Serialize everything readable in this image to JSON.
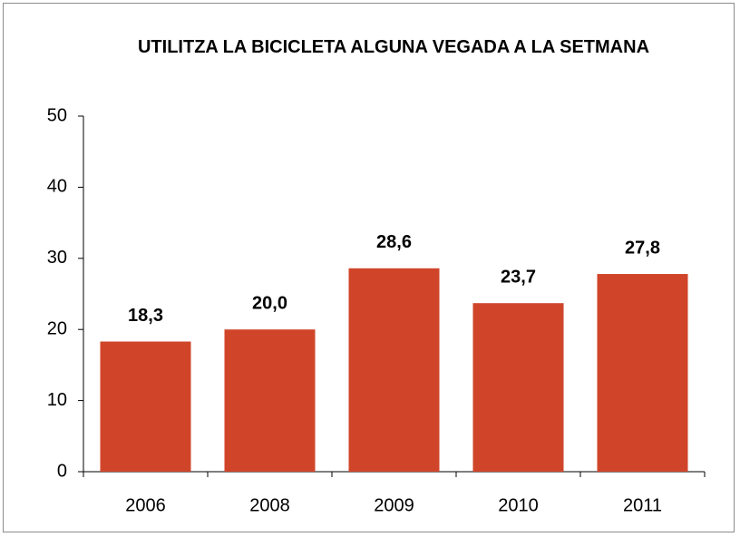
{
  "chart_data": {
    "type": "bar",
    "title": "UTILITZA LA BICICLETA ALGUNA VEGADA A LA SETMANA",
    "categories": [
      "2006",
      "2008",
      "2009",
      "2010",
      "2011"
    ],
    "values": [
      18.3,
      20.0,
      28.6,
      23.7,
      27.8
    ],
    "value_labels": [
      "18,3",
      "20,0",
      "28,6",
      "23,7",
      "27,8"
    ],
    "color": "#d0452a",
    "ylim": [
      0,
      50
    ],
    "yticks": [
      0,
      10,
      20,
      30,
      40,
      50
    ],
    "grid": false
  }
}
